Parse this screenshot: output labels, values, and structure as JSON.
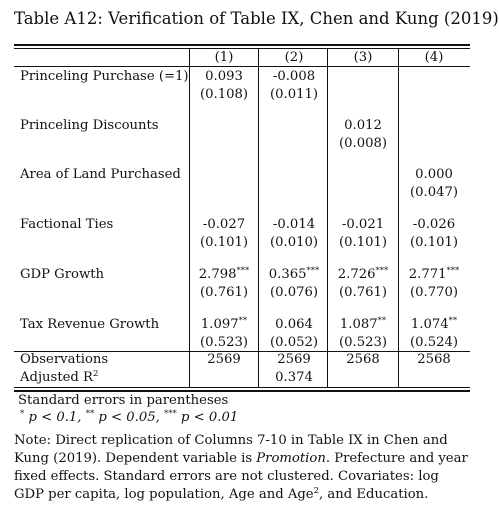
{
  "title": "Table A12: Verification of Table IX, Chen and Kung (2019)",
  "columns": [
    "(1)",
    "(2)",
    "(3)",
    "(4)"
  ],
  "rows": [
    {
      "label": "Princeling Purchase (=1)",
      "coef": [
        "0.093",
        "-0.008",
        "",
        ""
      ],
      "stars": [
        "",
        "",
        "",
        ""
      ],
      "se": [
        "(0.108)",
        "(0.011)",
        "",
        ""
      ]
    },
    {
      "label": "Princeling Discounts",
      "coef": [
        "",
        "",
        "0.012",
        ""
      ],
      "stars": [
        "",
        "",
        "",
        ""
      ],
      "se": [
        "",
        "",
        "(0.008)",
        ""
      ]
    },
    {
      "label": "Area of Land Purchased",
      "coef": [
        "",
        "",
        "",
        "0.000"
      ],
      "stars": [
        "",
        "",
        "",
        ""
      ],
      "se": [
        "",
        "",
        "",
        "(0.047)"
      ]
    },
    {
      "label": "Factional Ties",
      "coef": [
        "-0.027",
        "-0.014",
        "-0.021",
        "-0.026"
      ],
      "stars": [
        "",
        "",
        "",
        ""
      ],
      "se": [
        "(0.101)",
        "(0.010)",
        "(0.101)",
        "(0.101)"
      ]
    },
    {
      "label": "GDP Growth",
      "coef": [
        "2.798",
        "0.365",
        "2.726",
        "2.771"
      ],
      "stars": [
        "***",
        "***",
        "***",
        "***"
      ],
      "se": [
        "(0.761)",
        "(0.076)",
        "(0.761)",
        "(0.770)"
      ]
    },
    {
      "label": "Tax Revenue Growth",
      "coef": [
        "1.097",
        "0.064",
        "1.087",
        "1.074"
      ],
      "stars": [
        "**",
        "",
        "**",
        "**"
      ],
      "se": [
        "(0.523)",
        "(0.052)",
        "(0.523)",
        "(0.524)"
      ]
    }
  ],
  "observations": {
    "label": "Observations",
    "values": [
      "2569",
      "2569",
      "2568",
      "2568"
    ]
  },
  "adj_r2": {
    "label": "Adjusted R",
    "sup": "2",
    "values": [
      "",
      "0.374",
      "",
      ""
    ]
  },
  "footer": {
    "se_note": "Standard errors in parentheses",
    "sig_1_mark": "*",
    "sig_1": "p < 0.1,",
    "sig_2_mark": "**",
    "sig_2": "p < 0.05,",
    "sig_3_mark": "***",
    "sig_3": "p < 0.01"
  },
  "note": {
    "part1": "Note: Direct replication of Columns 7-10 in Table IX in Chen and Kung (2019). Dependent variable is ",
    "dv": "Promotion",
    "part2": ". Prefecture and year fixed effects. Standard errors are not clustered. Covariates: log GDP per capita, log population, Age and Age",
    "sup": "2",
    "part3": ", and Education."
  }
}
